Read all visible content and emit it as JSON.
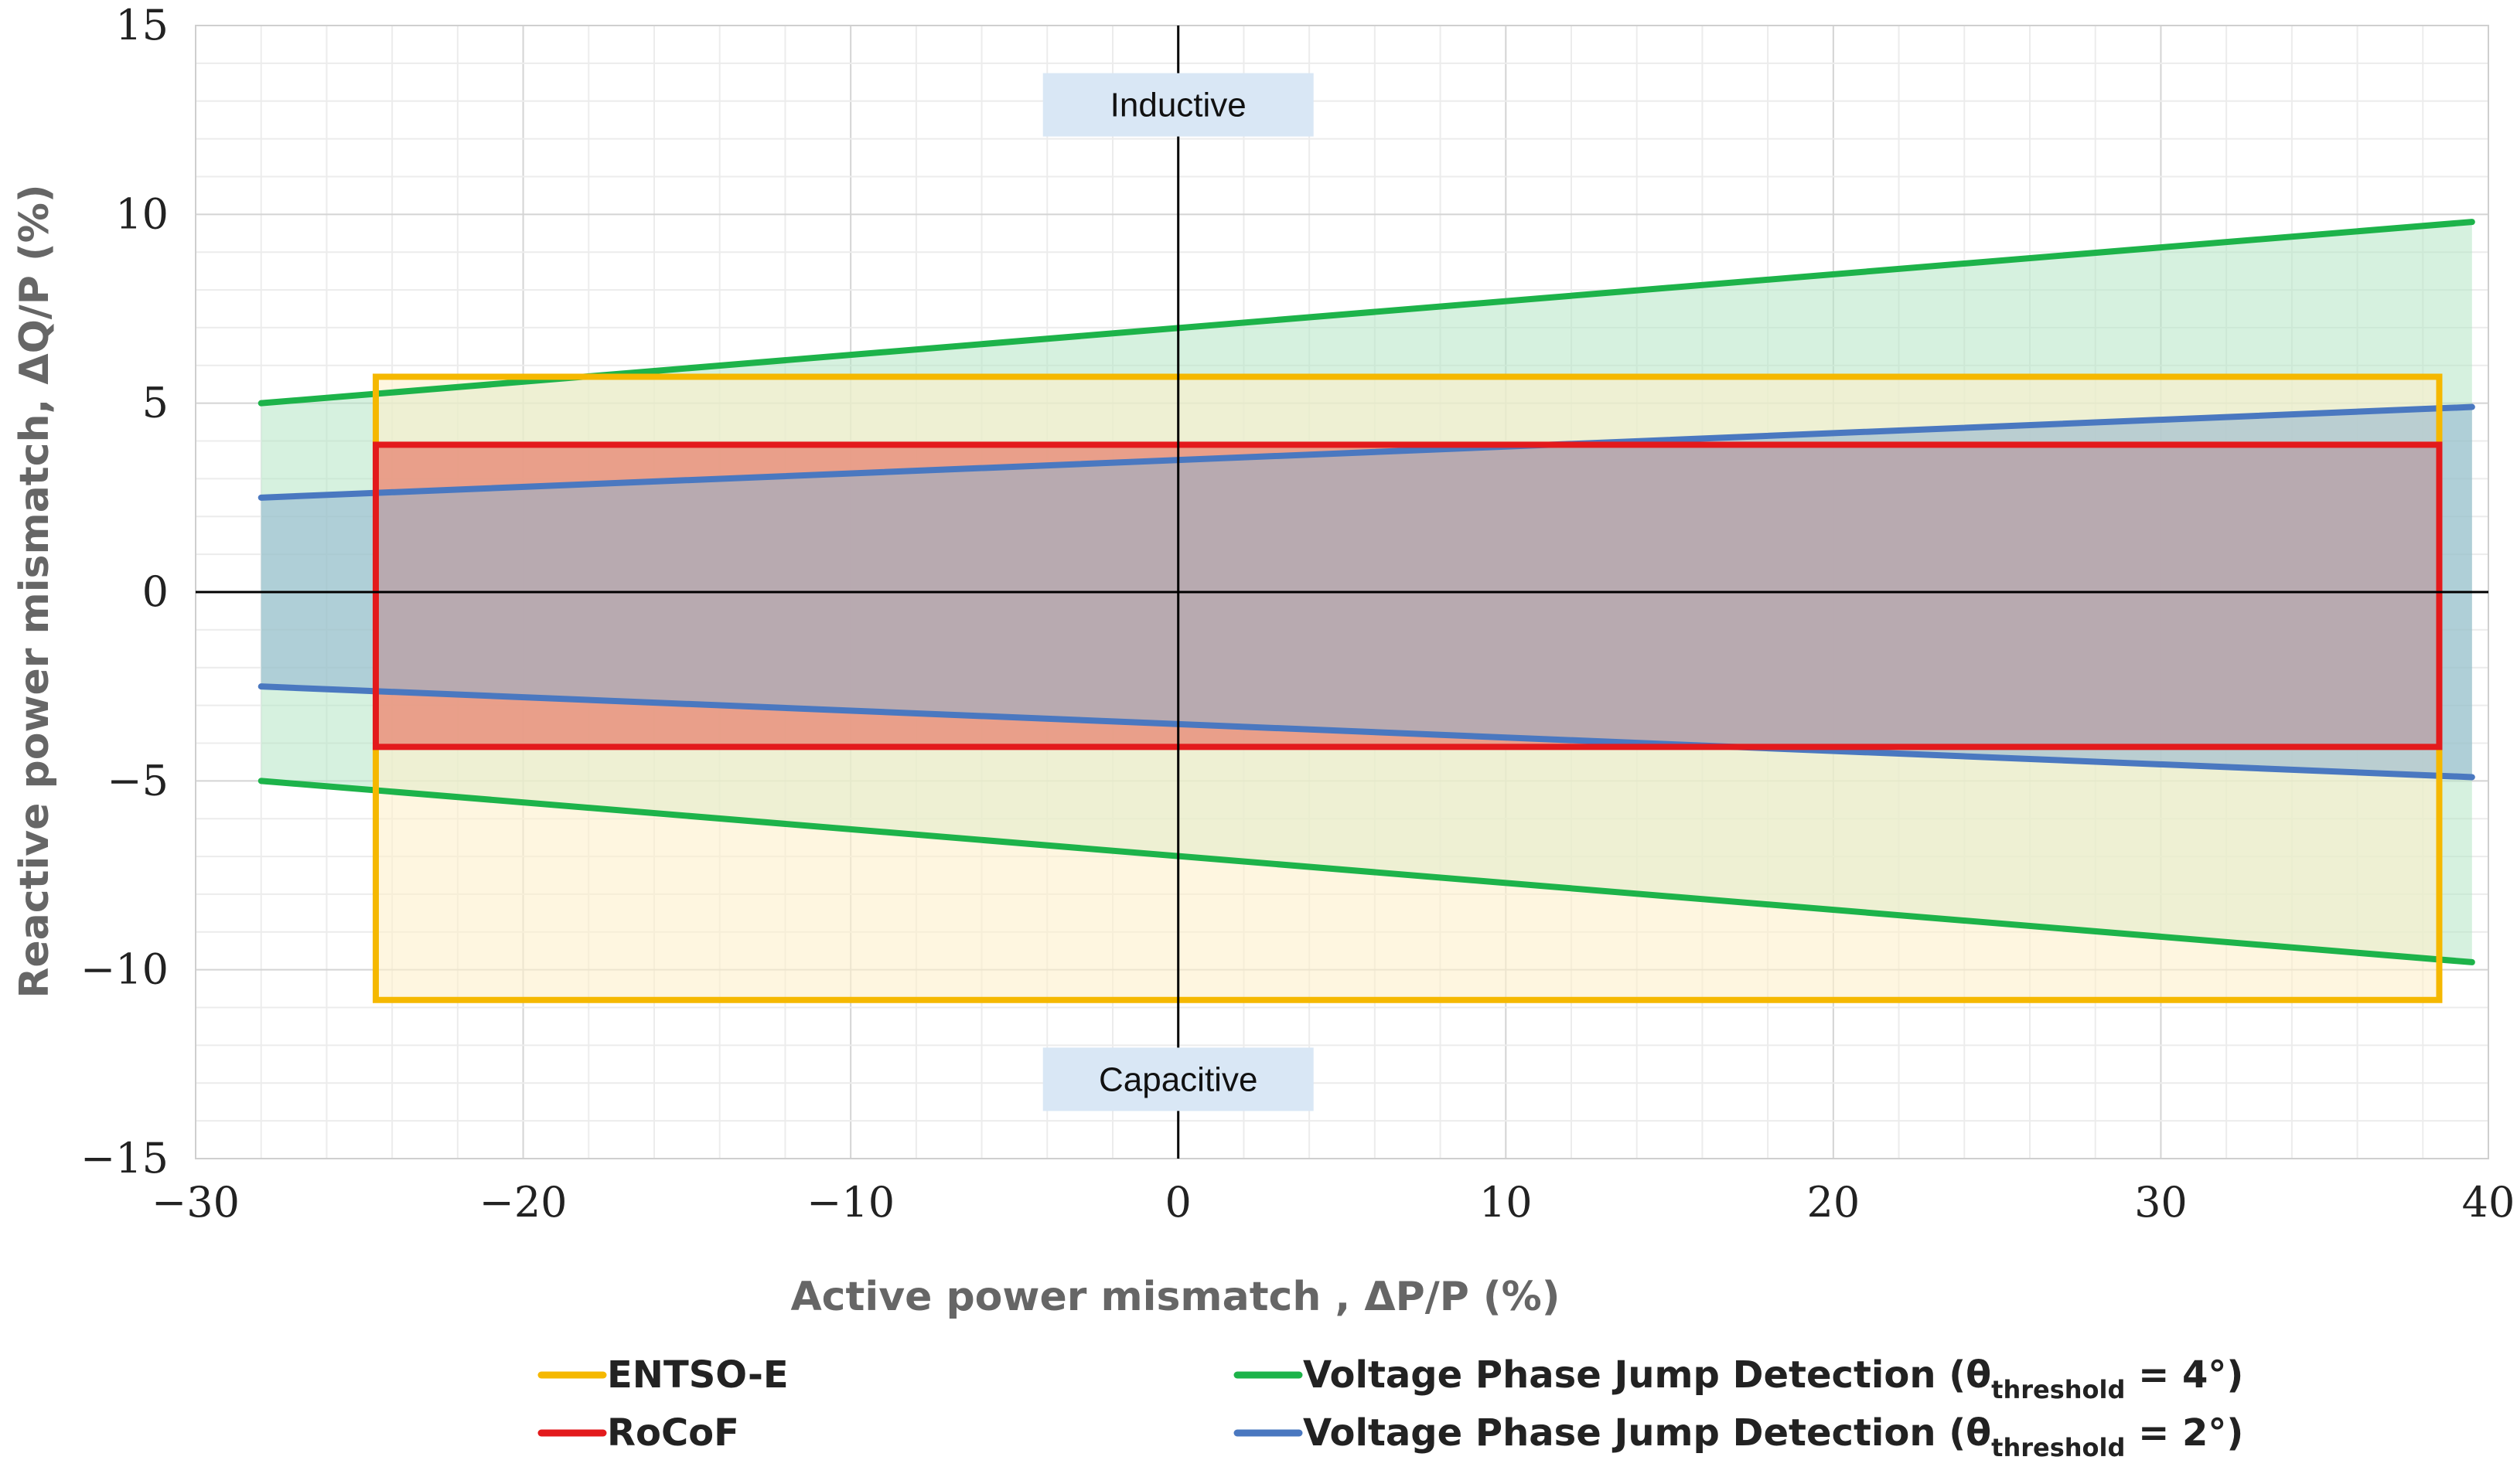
{
  "chart_data": {
    "type": "area",
    "title": "",
    "xlabel": "Active power mismatch , ΔP/P (%)",
    "ylabel": "Reactive  power mismatch, ΔQ/P (%)",
    "xlim": [
      -30,
      40
    ],
    "ylim": [
      -15,
      15
    ],
    "xticks": [
      -30,
      -20,
      -10,
      0,
      10,
      20,
      30,
      40
    ],
    "yticks": [
      -15,
      -10,
      -5,
      0,
      5,
      10,
      15
    ],
    "xtick_labels": [
      "−30",
      "−20",
      "−10",
      "0",
      "10",
      "20",
      "30",
      "40"
    ],
    "ytick_labels": [
      "−15",
      "−10",
      "−5",
      "0",
      "5",
      "10",
      "15"
    ],
    "grid": true,
    "series": [
      {
        "name": "ENTSO-E",
        "kind": "rectangle",
        "x": [
          -24.5,
          38.5
        ],
        "y": [
          -10.8,
          5.7
        ],
        "color": "#f5b800",
        "fill": "#fdf0cc"
      },
      {
        "name": "RoCoF",
        "kind": "rectangle",
        "x": [
          -24.5,
          38.5
        ],
        "y": [
          -4.1,
          3.9
        ],
        "color": "#e31a1c",
        "fill": "#e8907c"
      },
      {
        "name": "Voltage Phase Jump Detection (θthreshold = 4°)",
        "kind": "band",
        "x": [
          -28,
          39.5
        ],
        "upper": [
          5.0,
          9.8
        ],
        "lower": [
          -5.0,
          -9.8
        ],
        "color": "#1db34a",
        "fill": "#b5e6c4"
      },
      {
        "name": "Voltage Phase Jump Detection (θthreshold = 2°)",
        "kind": "band",
        "x": [
          -28,
          39.5
        ],
        "upper": [
          2.5,
          4.9
        ],
        "lower": [
          -2.5,
          -4.9
        ],
        "color": "#4a78c0",
        "fill": "#8fb2d0"
      }
    ],
    "annotations": [
      {
        "text": "Inductive",
        "x": 0,
        "y": 12.9
      },
      {
        "text": "Capacitive",
        "x": 0,
        "y": -12.9
      }
    ],
    "legend": {
      "position": "bottom",
      "items": [
        {
          "label": "ENTSO-E",
          "sub": "",
          "tail": "",
          "color": "#f5b800"
        },
        {
          "label": "Voltage Phase Jump Detection (θ",
          "sub": "threshold",
          "tail": " = 4°)",
          "color": "#1db34a"
        },
        {
          "label": "RoCoF",
          "sub": "",
          "tail": "",
          "color": "#e31a1c"
        },
        {
          "label": "Voltage Phase Jump Detection (θ",
          "sub": "threshold",
          "tail": " = 2°)",
          "color": "#4a78c0"
        }
      ]
    }
  }
}
